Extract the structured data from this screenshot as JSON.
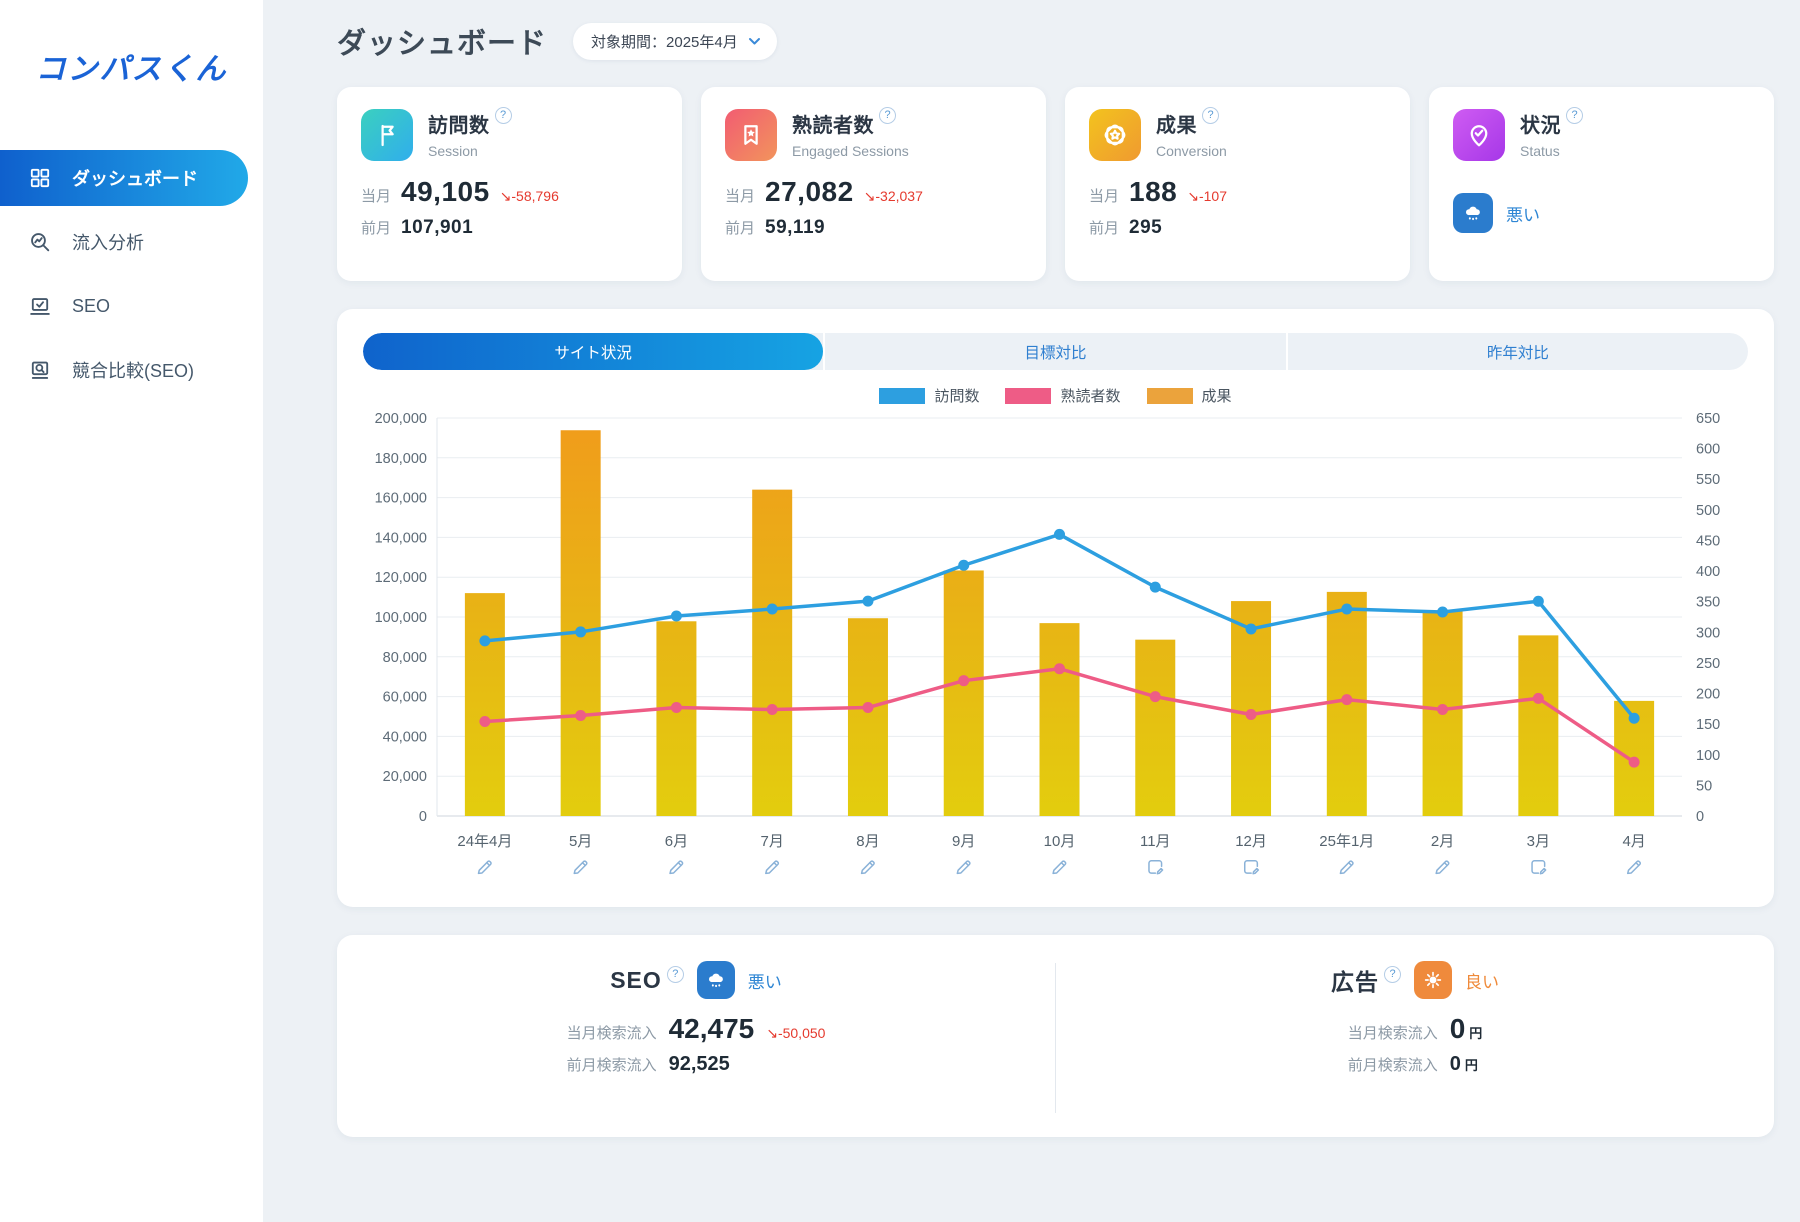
{
  "app": {
    "logo": "コンパスくん"
  },
  "sidebar": {
    "items": [
      {
        "id": "dashboard",
        "label": "ダッシュボード",
        "icon": "grid-icon",
        "active": true
      },
      {
        "id": "inflow",
        "label": "流入分析",
        "icon": "search-analytics-icon",
        "active": false
      },
      {
        "id": "seo",
        "label": "SEO",
        "icon": "laptop-check-icon",
        "active": false
      },
      {
        "id": "competitor",
        "label": "競合比較(SEO)",
        "icon": "screen-search-icon",
        "active": false
      }
    ]
  },
  "header": {
    "title": "ダッシュボード",
    "period_label": "対象期間：2025年4月"
  },
  "kpi_cards": [
    {
      "id": "sessions",
      "title": "訪問数",
      "subtitle": "Session",
      "icon": "flag-icon",
      "gradient": [
        "#3bd0bf",
        "#30aeec"
      ],
      "current_label": "当月",
      "current_value": "49,105",
      "delta": "↘-58,796",
      "prev_label": "前月",
      "prev_value": "107,901"
    },
    {
      "id": "engaged",
      "title": "熟読者数",
      "subtitle": "Engaged Sessions",
      "icon": "bookmark-star-icon",
      "gradient": [
        "#f25c72",
        "#f2945c"
      ],
      "current_label": "当月",
      "current_value": "27,082",
      "delta": "↘-32,037",
      "prev_label": "前月",
      "prev_value": "59,119"
    },
    {
      "id": "conversion",
      "title": "成果",
      "subtitle": "Conversion",
      "icon": "seal-star-icon",
      "gradient": [
        "#f2c31e",
        "#f09a30"
      ],
      "current_label": "当月",
      "current_value": "188",
      "delta": "↘-107",
      "prev_label": "前月",
      "prev_value": "295"
    },
    {
      "id": "status",
      "title": "状況",
      "subtitle": "Status",
      "icon": "pin-check-icon",
      "gradient": [
        "#cf5cf2",
        "#a637e8"
      ],
      "status_label": "悪い",
      "status_icon": "rain-icon",
      "status_tone": "bad"
    }
  ],
  "chart_section": {
    "tabs": [
      {
        "label": "サイト状況",
        "active": true
      },
      {
        "label": "目標対比",
        "active": false
      },
      {
        "label": "昨年対比",
        "active": false
      }
    ],
    "chart_data": {
      "type": "combo",
      "categories": [
        "24年4月",
        "5月",
        "6月",
        "7月",
        "8月",
        "9月",
        "10月",
        "11月",
        "12月",
        "25年1月",
        "2月",
        "3月",
        "4月"
      ],
      "series": [
        {
          "name": "訪問数",
          "type": "line",
          "axis": "left",
          "color": "#2d9fe0",
          "values": [
            88000,
            92500,
            100500,
            104000,
            108000,
            126000,
            141500,
            115000,
            94000,
            104000,
            102500,
            107901,
            49105
          ]
        },
        {
          "name": "熟読者数",
          "type": "line",
          "axis": "left",
          "color": "#ee5c86",
          "values": [
            47500,
            50500,
            54500,
            53500,
            54500,
            68000,
            74000,
            60000,
            51000,
            58500,
            53500,
            59119,
            27082
          ]
        },
        {
          "name": "成果",
          "type": "bar",
          "axis": "right",
          "color": "#eba33c",
          "values": [
            364,
            630,
            318,
            533,
            323,
            401,
            315,
            288,
            351,
            366,
            334,
            295,
            188
          ]
        }
      ],
      "left_axis": {
        "min": 0,
        "max": 200000,
        "step": 20000
      },
      "right_axis": {
        "min": 0,
        "max": 650,
        "step": 50
      },
      "grid": true,
      "legend_position": "top-center",
      "month_icons": [
        "edit",
        "edit",
        "edit",
        "edit",
        "edit",
        "edit",
        "edit",
        "memo",
        "memo",
        "edit",
        "edit",
        "memo",
        "edit"
      ]
    }
  },
  "bottom": {
    "seo": {
      "title": "SEO",
      "status_label": "悪い",
      "status_icon": "rain-icon",
      "status_tone": "bad",
      "rows": [
        {
          "label": "当月検索流入",
          "value": "42,475",
          "delta": "↘-50,050"
        },
        {
          "label": "前月検索流入",
          "value": "92,525"
        }
      ]
    },
    "ads": {
      "title": "広告",
      "status_label": "良い",
      "status_icon": "sun-icon",
      "status_tone": "good",
      "rows": [
        {
          "label": "当月検索流入",
          "value": "0",
          "unit": "円"
        },
        {
          "label": "前月検索流入",
          "value": "0",
          "unit": "円"
        }
      ]
    }
  },
  "colors": {
    "accent_gradient_start": "#0f60cd",
    "accent_gradient_end": "#21a9e8",
    "bar_gradient_top": "#f09d1b",
    "bar_gradient_bottom": "#e3cd0e",
    "negative": "#e53a2e",
    "bad_status": "#2e86d4",
    "good_status": "#ef8a3a"
  }
}
